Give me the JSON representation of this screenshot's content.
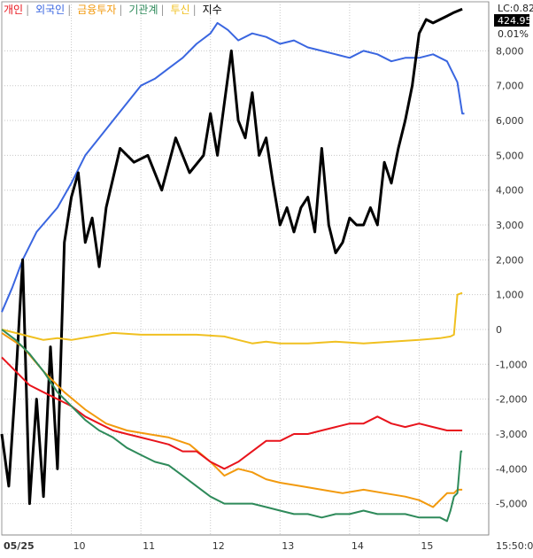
{
  "chart_data": {
    "type": "line",
    "legend": [
      {
        "name": "개인",
        "color": "#e8141c"
      },
      {
        "name": "외국인",
        "color": "#3a66e0"
      },
      {
        "name": "금융투자",
        "color": "#f29a0e"
      },
      {
        "name": "기관계",
        "color": "#2e8a5a"
      },
      {
        "name": "투신",
        "color": "#f0c020"
      },
      {
        "name": "지수",
        "color": "#000000"
      }
    ],
    "lc_label": "LC:0.82",
    "index_badge": "424.95",
    "index_percent": "0.01%",
    "y_ticks": [
      "8,000",
      "7,000",
      "6,000",
      "5,000",
      "4,000",
      "3,000",
      "2,000",
      "1,000",
      "0",
      "-1,000",
      "-2,000",
      "-3,000",
      "-4,000",
      "-5,000"
    ],
    "y_values": [
      8000,
      7000,
      6000,
      5000,
      4000,
      3000,
      2000,
      1000,
      0,
      -1000,
      -2000,
      -3000,
      -4000,
      -5000
    ],
    "ylim": [
      -5900,
      8900
    ],
    "x_ticks": [
      "05/25",
      "10",
      "11",
      "12",
      "13",
      "14",
      "15",
      "15:50:0"
    ],
    "x_tick_positions": [
      0,
      1,
      2,
      3,
      4,
      5,
      6,
      7
    ],
    "xlim": [
      0,
      7.0
    ],
    "series": [
      {
        "name": "외국인",
        "color": "#3a66e0",
        "x": [
          0,
          0.15,
          0.3,
          0.5,
          0.8,
          1.0,
          1.2,
          1.4,
          1.6,
          1.8,
          2.0,
          2.2,
          2.4,
          2.6,
          2.8,
          3.0,
          3.1,
          3.25,
          3.4,
          3.6,
          3.8,
          4.0,
          4.2,
          4.4,
          4.6,
          4.8,
          5.0,
          5.2,
          5.4,
          5.6,
          5.8,
          6.0,
          6.2,
          6.4,
          6.55,
          6.62,
          6.65
        ],
        "y": [
          500,
          1200,
          2000,
          2800,
          3500,
          4200,
          5000,
          5500,
          6000,
          6500,
          7000,
          7200,
          7500,
          7800,
          8200,
          8500,
          8800,
          8600,
          8300,
          8500,
          8400,
          8200,
          8300,
          8100,
          8000,
          7900,
          7800,
          8000,
          7900,
          7700,
          7800,
          7800,
          7900,
          7700,
          7100,
          6200,
          6200
        ]
      },
      {
        "name": "지수",
        "color": "#000000",
        "x": [
          0,
          0.1,
          0.2,
          0.3,
          0.4,
          0.5,
          0.6,
          0.7,
          0.8,
          0.9,
          1.0,
          1.1,
          1.2,
          1.3,
          1.4,
          1.5,
          1.7,
          1.9,
          2.1,
          2.3,
          2.5,
          2.7,
          2.9,
          3.0,
          3.1,
          3.2,
          3.3,
          3.4,
          3.5,
          3.6,
          3.7,
          3.8,
          3.9,
          4.0,
          4.1,
          4.2,
          4.3,
          4.4,
          4.5,
          4.6,
          4.7,
          4.8,
          4.9,
          5.0,
          5.1,
          5.2,
          5.3,
          5.4,
          5.5,
          5.6,
          5.7,
          5.8,
          5.9,
          6.0,
          6.1,
          6.2,
          6.3,
          6.4,
          6.5,
          6.62
        ],
        "y": [
          -3000,
          -4500,
          -1500,
          2000,
          -5000,
          -2000,
          -4800,
          -500,
          -4000,
          2500,
          3800,
          4500,
          2500,
          3200,
          1800,
          3500,
          5200,
          4800,
          5000,
          4000,
          5500,
          4500,
          5000,
          6200,
          5000,
          6500,
          8000,
          6000,
          5500,
          6800,
          5000,
          5500,
          4200,
          3000,
          3500,
          2800,
          3500,
          3800,
          2800,
          5200,
          3000,
          2200,
          2500,
          3200,
          3000,
          3000,
          3500,
          3000,
          4800,
          4200,
          5200,
          6000,
          7000,
          8500,
          8900,
          8800,
          8900,
          9000,
          9100,
          9200
        ]
      },
      {
        "name": "투신",
        "color": "#f0c020",
        "x": [
          0,
          0.2,
          0.4,
          0.6,
          0.8,
          1.0,
          1.3,
          1.6,
          2.0,
          2.4,
          2.8,
          3.2,
          3.4,
          3.6,
          3.8,
          4.0,
          4.4,
          4.8,
          5.2,
          5.6,
          6.0,
          6.3,
          6.45,
          6.5,
          6.55,
          6.62
        ],
        "y": [
          0,
          -100,
          -200,
          -300,
          -250,
          -300,
          -200,
          -100,
          -150,
          -150,
          -150,
          -200,
          -300,
          -400,
          -350,
          -400,
          -400,
          -350,
          -400,
          -350,
          -300,
          -250,
          -200,
          -150,
          1000,
          1050
        ]
      },
      {
        "name": "금융투자",
        "color": "#f29a0e",
        "x": [
          0,
          0.3,
          0.6,
          0.9,
          1.2,
          1.5,
          1.8,
          2.1,
          2.4,
          2.7,
          3.0,
          3.2,
          3.4,
          3.6,
          3.8,
          4.0,
          4.3,
          4.6,
          4.9,
          5.2,
          5.5,
          5.8,
          6.0,
          6.2,
          6.4,
          6.5,
          6.55,
          6.62
        ],
        "y": [
          -100,
          -500,
          -1200,
          -1800,
          -2300,
          -2700,
          -2900,
          -3000,
          -3100,
          -3300,
          -3800,
          -4200,
          -4000,
          -4100,
          -4300,
          -4400,
          -4500,
          -4600,
          -4700,
          -4600,
          -4700,
          -4800,
          -4900,
          -5100,
          -4700,
          -4700,
          -4600,
          -4600
        ]
      },
      {
        "name": "개인",
        "color": "#e8141c",
        "x": [
          0,
          0.2,
          0.4,
          0.6,
          0.8,
          1.0,
          1.2,
          1.4,
          1.6,
          1.8,
          2.0,
          2.2,
          2.4,
          2.6,
          2.8,
          3.0,
          3.2,
          3.4,
          3.6,
          3.8,
          4.0,
          4.2,
          4.4,
          4.6,
          4.8,
          5.0,
          5.2,
          5.4,
          5.6,
          5.8,
          6.0,
          6.2,
          6.4,
          6.55,
          6.62
        ],
        "y": [
          -800,
          -1200,
          -1600,
          -1800,
          -2000,
          -2200,
          -2500,
          -2700,
          -2900,
          -3000,
          -3100,
          -3200,
          -3300,
          -3500,
          -3500,
          -3800,
          -4000,
          -3800,
          -3500,
          -3200,
          -3200,
          -3000,
          -3000,
          -2900,
          -2800,
          -2700,
          -2700,
          -2500,
          -2700,
          -2800,
          -2700,
          -2800,
          -2900,
          -2900,
          -2900
        ]
      },
      {
        "name": "기관계",
        "color": "#2e8a5a",
        "x": [
          0,
          0.2,
          0.4,
          0.6,
          0.8,
          1.0,
          1.2,
          1.4,
          1.6,
          1.8,
          2.0,
          2.2,
          2.4,
          2.6,
          2.8,
          3.0,
          3.2,
          3.4,
          3.6,
          3.8,
          4.0,
          4.2,
          4.4,
          4.6,
          4.8,
          5.0,
          5.2,
          5.4,
          5.6,
          5.8,
          6.0,
          6.2,
          6.3,
          6.4,
          6.45,
          6.5,
          6.55,
          6.6,
          6.62
        ],
        "y": [
          0,
          -300,
          -700,
          -1200,
          -1800,
          -2200,
          -2600,
          -2900,
          -3100,
          -3400,
          -3600,
          -3800,
          -3900,
          -4200,
          -4500,
          -4800,
          -5000,
          -5000,
          -5000,
          -5100,
          -5200,
          -5300,
          -5300,
          -5400,
          -5300,
          -5300,
          -5200,
          -5300,
          -5300,
          -5300,
          -5400,
          -5400,
          -5400,
          -5500,
          -5200,
          -4800,
          -4700,
          -3500,
          -3500
        ]
      }
    ]
  }
}
